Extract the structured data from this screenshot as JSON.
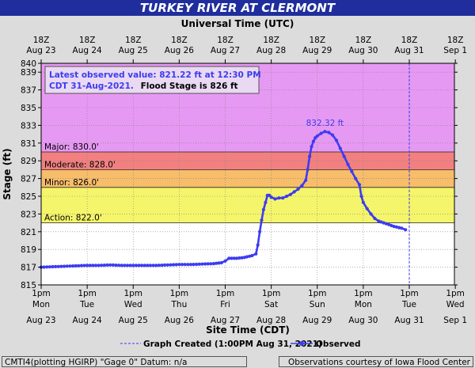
{
  "header": {
    "title": "TURKEY RIVER AT CLERMONT"
  },
  "chart_data": {
    "type": "line",
    "title": "TURKEY RIVER AT CLERMONT",
    "xlabel_top": "Universal Time (UTC)",
    "xlabel": "Site Time (CDT)",
    "ylabel": "Stage (ft)",
    "ylim": [
      815,
      840
    ],
    "y_ticks": [
      815,
      817,
      819,
      821,
      823,
      825,
      827,
      829,
      831,
      833,
      835,
      837,
      839,
      840
    ],
    "x_range_hours": [
      0,
      192
    ],
    "x_ticks_bottom": [
      {
        "h": 0,
        "time": "1pm",
        "day": "Mon",
        "date": "Aug 23"
      },
      {
        "h": 24,
        "time": "1pm",
        "day": "Tue",
        "date": "Aug 24"
      },
      {
        "h": 48,
        "time": "1pm",
        "day": "Wed",
        "date": "Aug 25"
      },
      {
        "h": 72,
        "time": "1pm",
        "day": "Thu",
        "date": "Aug 26"
      },
      {
        "h": 96,
        "time": "1pm",
        "day": "Fri",
        "date": "Aug 27"
      },
      {
        "h": 120,
        "time": "1pm",
        "day": "Sat",
        "date": "Aug 28"
      },
      {
        "h": 144,
        "time": "1pm",
        "day": "Sun",
        "date": "Aug 29"
      },
      {
        "h": 168,
        "time": "1pm",
        "day": "Mon",
        "date": "Aug 30"
      },
      {
        "h": 192,
        "time": "1pm",
        "day": "Tue",
        "date": "Aug 31"
      },
      {
        "h": 216,
        "time": "1pm",
        "day": "Wed",
        "date": "Sep 1"
      }
    ],
    "x_ticks_top": [
      {
        "h": 0,
        "time": "18Z",
        "date": "Aug 23"
      },
      {
        "h": 24,
        "time": "18Z",
        "date": "Aug 24"
      },
      {
        "h": 48,
        "time": "18Z",
        "date": "Aug 25"
      },
      {
        "h": 72,
        "time": "18Z",
        "date": "Aug 26"
      },
      {
        "h": 96,
        "time": "18Z",
        "date": "Aug 27"
      },
      {
        "h": 120,
        "time": "18Z",
        "date": "Aug 28"
      },
      {
        "h": 144,
        "time": "18Z",
        "date": "Aug 29"
      },
      {
        "h": 168,
        "time": "18Z",
        "date": "Aug 30"
      },
      {
        "h": 192,
        "time": "18Z",
        "date": "Aug 31"
      },
      {
        "h": 216,
        "time": "18Z",
        "date": "Sep 1"
      }
    ],
    "flood_bands": [
      {
        "name": "Major",
        "label": "Major: 830.0'",
        "from": 830,
        "to": 840,
        "color": "#e699f2"
      },
      {
        "name": "Moderate",
        "label": "Moderate: 828.0'",
        "from": 828,
        "to": 830,
        "color": "#f28080"
      },
      {
        "name": "Minor",
        "label": "Minor: 826.0'",
        "from": 826,
        "to": 828,
        "color": "#f7bd6b"
      },
      {
        "name": "Action",
        "label": "Action: 822.0'",
        "from": 822,
        "to": 826,
        "color": "#f5f56b"
      }
    ],
    "series": [
      {
        "name": "Observed",
        "color": "#3c3cf0",
        "points": [
          [
            0,
            817.0
          ],
          [
            6,
            817.05
          ],
          [
            12,
            817.1
          ],
          [
            18,
            817.15
          ],
          [
            24,
            817.2
          ],
          [
            30,
            817.2
          ],
          [
            36,
            817.25
          ],
          [
            42,
            817.2
          ],
          [
            48,
            817.2
          ],
          [
            54,
            817.2
          ],
          [
            60,
            817.2
          ],
          [
            66,
            817.25
          ],
          [
            72,
            817.3
          ],
          [
            78,
            817.3
          ],
          [
            84,
            817.35
          ],
          [
            90,
            817.4
          ],
          [
            94,
            817.5
          ],
          [
            96,
            817.7
          ],
          [
            98,
            818.0
          ],
          [
            102,
            818.0
          ],
          [
            106,
            818.1
          ],
          [
            110,
            818.3
          ],
          [
            112,
            818.5
          ],
          [
            113,
            819.5
          ],
          [
            114,
            821.0
          ],
          [
            115,
            822.3
          ],
          [
            116,
            823.5
          ],
          [
            117,
            824.3
          ],
          [
            118,
            825.1
          ],
          [
            119,
            825.1
          ],
          [
            120,
            824.9
          ],
          [
            122,
            824.7
          ],
          [
            124,
            824.8
          ],
          [
            126,
            824.8
          ],
          [
            128,
            825.0
          ],
          [
            130,
            825.2
          ],
          [
            132,
            825.5
          ],
          [
            134,
            825.8
          ],
          [
            136,
            826.2
          ],
          [
            138,
            826.8
          ],
          [
            139,
            828.0
          ],
          [
            140,
            829.5
          ],
          [
            141,
            830.6
          ],
          [
            142,
            831.2
          ],
          [
            143,
            831.6
          ],
          [
            144,
            831.8
          ],
          [
            146,
            832.1
          ],
          [
            148,
            832.3
          ],
          [
            150,
            832.2
          ],
          [
            152,
            831.9
          ],
          [
            154,
            831.3
          ],
          [
            156,
            830.4
          ],
          [
            158,
            829.5
          ],
          [
            160,
            828.6
          ],
          [
            162,
            827.8
          ],
          [
            164,
            827.0
          ],
          [
            166,
            826.3
          ],
          [
            167,
            825.0
          ],
          [
            168,
            824.3
          ],
          [
            170,
            823.6
          ],
          [
            172,
            823.0
          ],
          [
            174,
            822.5
          ],
          [
            176,
            822.2
          ],
          [
            180,
            821.9
          ],
          [
            184,
            821.6
          ],
          [
            188,
            821.4
          ],
          [
            190,
            821.22
          ]
        ]
      }
    ],
    "peak_label": "832.32 ft",
    "peak": {
      "h": 148,
      "value": 832.32
    },
    "graph_created_h": 192,
    "latest": {
      "value": 821.22,
      "time": "12:30 PM CDT 31-Aug-2021",
      "flood_stage": 826
    }
  },
  "info_box": {
    "line1": "Latest observed value: 821.22 ft at 12:30 PM",
    "line2_blue": "CDT 31-Aug-2021.",
    "line2_black": "Flood Stage is 826 ft"
  },
  "legend": {
    "created_label": "Graph Created (1:00PM Aug 31, 2021)",
    "observed_label": "Observed"
  },
  "footer": {
    "left": "CMTI4(plotting HGIRP) \"Gage 0\" Datum: n/a",
    "right": "Observations courtesy of Iowa Flood Center"
  },
  "colors": {
    "title_bar": "#1f2e9c",
    "plot_bg": "#ffffff",
    "observed": "#3c3cf0",
    "grid": "#555555"
  }
}
